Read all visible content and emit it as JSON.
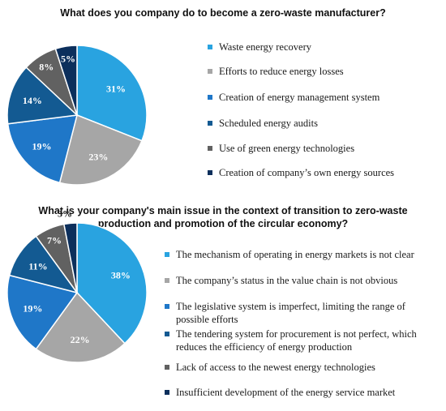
{
  "chart_data": [
    {
      "type": "pie",
      "title": "What does you company do to become a zero-waste manufacturer?",
      "categories": [
        "Waste energy recovery",
        "Efforts to reduce energy losses",
        "Creation of energy management system",
        "Scheduled energy audits",
        "Use of green energy technologies",
        "Creation of company’s own energy sources"
      ],
      "values": [
        31,
        23,
        19,
        14,
        8,
        5
      ],
      "value_labels": [
        "31%",
        "23%",
        "19%",
        "14%",
        "8%",
        "5%"
      ],
      "colors": [
        "#29a3e0",
        "#a6a6a6",
        "#1f77c8",
        "#135a92",
        "#616161",
        "#0c2f5c"
      ],
      "label_colors": [
        "#ffffff",
        "#ffffff",
        "#ffffff",
        "#ffffff",
        "#ffffff",
        "#ffffff"
      ],
      "legend_position": "right"
    },
    {
      "type": "pie",
      "title": "What is your company's main issue in the context of transition to zero-waste production and promotion of the circular economy?",
      "categories": [
        "The mechanism of operating in energy markets is not clear",
        "The company’s status in the value chain is not obvious",
        "The legislative system is imperfect, limiting the range of possible efforts",
        "The tendering system for procurement is not perfect, which reduces the efficiency of energy production",
        "Lack of access to the newest energy technologies",
        "Insufficient development of the energy service market"
      ],
      "values": [
        38,
        22,
        19,
        11,
        7,
        3
      ],
      "value_labels": [
        "38%",
        "22%",
        "19%",
        "11%",
        "7%",
        "3%"
      ],
      "colors": [
        "#29a3e0",
        "#a6a6a6",
        "#1f77c8",
        "#135a92",
        "#616161",
        "#0c2f5c"
      ],
      "label_colors": [
        "#ffffff",
        "#ffffff",
        "#ffffff",
        "#ffffff",
        "#ffffff",
        "#1a1a1a"
      ],
      "legend_position": "right"
    }
  ]
}
